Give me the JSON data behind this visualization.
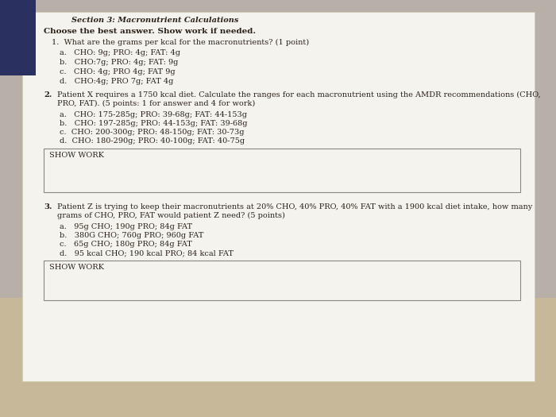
{
  "bg_color_top": "#b8b0a8",
  "bg_color_paper": "#f5f3ee",
  "bg_color_bottom": "#c8b89a",
  "section_title": "Section 3: Macronutrient Calculations",
  "instruction": "Choose the best answer. Show work if needed.",
  "q1_text": "1.  What are the grams per kcal for the macronutrients? (1 point)",
  "q1_choices": [
    "a.   CHO: 9g; PRO: 4g; FAT: 4g",
    "b.   CHO:7g; PRO: 4g; FAT: 9g",
    "c.   CHO: 4g; PRO 4g; FAT 9g",
    "d.   CHO:4g; PRO 7g; FAT 4g"
  ],
  "q2_label": "2.",
  "q2_text_line1": "Patient X requires a 1750 kcal diet. Calculate the ranges for each macronutrient using the AMDR recommendations (CHO,",
  "q2_text_line2": "PRO, FAT). (5 points: 1 for answer and 4 for work)",
  "q2_choices": [
    "a.   CHO: 175-285g; PRO: 39-68g; FAT: 44-153g",
    "b.   CHO: 197-285g; PRO: 44-153g; FAT: 39-68g",
    "c.  CHO: 200-300g; PRO: 48-150g; FAT: 30-73g",
    "d.  CHO: 180-290g; PRO: 40-100g; FAT: 40-75g"
  ],
  "show_work": "SHOW WORK",
  "q3_label": "3.",
  "q3_text_line1": "Patient Z is trying to keep their macronutrients at 20% CHO, 40% PRO, 40% FAT with a 1900 kcal diet intake, how many",
  "q3_text_line2": "grams of CHO, PRO, FAT would patient Z need? (5 points)",
  "q3_choices": [
    "a.   95g CHO; 190g PRO; 84g FAT",
    "b.   380G CHO; 760g PRO; 960g FAT",
    "c.   65g CHO; 180g PRO; 84g FAT",
    "d.   95 kcal CHO; 190 kcal PRO; 84 kcal FAT"
  ],
  "text_color": "#2a2218",
  "box_color": "#e8e4db",
  "box_edge_color": "#888880"
}
